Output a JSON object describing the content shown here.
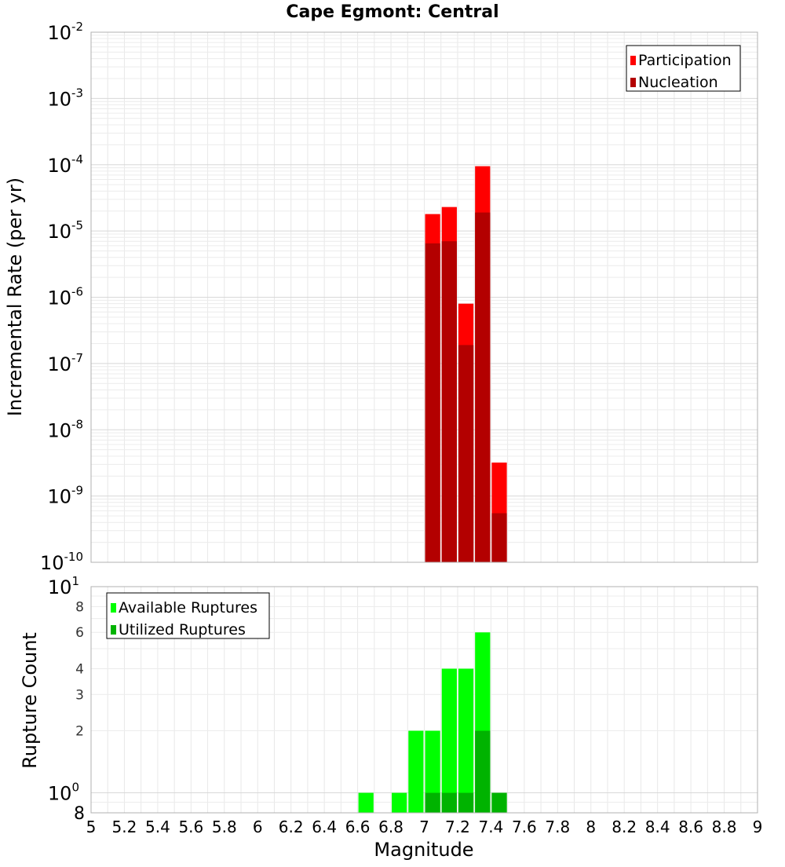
{
  "chart_data": [
    {
      "id": "top",
      "type": "bar",
      "title": "Cape Egmont: Central",
      "ylabel": "Incremental Rate (per yr)",
      "xlabel": "",
      "xlim": [
        5,
        9
      ],
      "yscale": "log",
      "ylim": [
        1e-10,
        0.01
      ],
      "y_ticks": [
        {
          "base": "10",
          "exp": "-2"
        },
        {
          "base": "10",
          "exp": "-3"
        },
        {
          "base": "10",
          "exp": "-4"
        },
        {
          "base": "10",
          "exp": "-5"
        },
        {
          "base": "10",
          "exp": "-6"
        },
        {
          "base": "10",
          "exp": "-7"
        },
        {
          "base": "10",
          "exp": "-8"
        },
        {
          "base": "10",
          "exp": "-9"
        },
        {
          "base": "10",
          "exp": "-10"
        }
      ],
      "bar_width": 0.1,
      "grid": true,
      "legend": {
        "position": "top-right"
      },
      "series": [
        {
          "name": "Participation",
          "color": "#ff0000",
          "points": [
            {
              "x": 7.05,
              "y": 1.8e-05
            },
            {
              "x": 7.15,
              "y": 2.3e-05
            },
            {
              "x": 7.25,
              "y": 8e-07
            },
            {
              "x": 7.35,
              "y": 9.5e-05
            },
            {
              "x": 7.45,
              "y": 3.2e-09
            }
          ]
        },
        {
          "name": "Nucleation",
          "color": "#b30000",
          "points": [
            {
              "x": 7.05,
              "y": 6.5e-06
            },
            {
              "x": 7.15,
              "y": 7e-06
            },
            {
              "x": 7.25,
              "y": 1.9e-07
            },
            {
              "x": 7.35,
              "y": 1.9e-05
            },
            {
              "x": 7.45,
              "y": 5.5e-10
            }
          ]
        }
      ]
    },
    {
      "id": "bottom",
      "type": "bar",
      "title": "",
      "ylabel": "Rupture Count",
      "xlabel": "Magnitude",
      "xlim": [
        5,
        9
      ],
      "x_ticks": [
        "5",
        "5.2",
        "5.4",
        "5.6",
        "5.8",
        "6",
        "6.2",
        "6.4",
        "6.6",
        "6.8",
        "7",
        "7.2",
        "7.4",
        "7.6",
        "7.8",
        "8",
        "8.2",
        "8.4",
        "8.6",
        "8.8",
        "9"
      ],
      "yscale": "log",
      "ylim": [
        0.8,
        10
      ],
      "y_ticks": [
        {
          "value": 10,
          "base": "10",
          "exp": "1",
          "major": true
        },
        {
          "value": 8,
          "label": "8"
        },
        {
          "value": 6,
          "label": "6"
        },
        {
          "value": 4,
          "label": "4"
        },
        {
          "value": 3,
          "label": "3"
        },
        {
          "value": 2,
          "label": "2"
        },
        {
          "value": 1,
          "base": "10",
          "exp": "0",
          "major": true
        },
        {
          "value": 0.8,
          "label": "8",
          "major": true
        }
      ],
      "bar_width": 0.1,
      "grid": true,
      "legend": {
        "position": "top-left"
      },
      "series": [
        {
          "name": "Available Ruptures",
          "color": "#00ff00",
          "points": [
            {
              "x": 6.65,
              "y": 1
            },
            {
              "x": 6.85,
              "y": 1
            },
            {
              "x": 6.95,
              "y": 2
            },
            {
              "x": 7.05,
              "y": 2
            },
            {
              "x": 7.15,
              "y": 4
            },
            {
              "x": 7.25,
              "y": 4
            },
            {
              "x": 7.35,
              "y": 6
            },
            {
              "x": 7.45,
              "y": 1
            }
          ]
        },
        {
          "name": "Utilized Ruptures",
          "color": "#00b300",
          "points": [
            {
              "x": 7.05,
              "y": 1
            },
            {
              "x": 7.15,
              "y": 1
            },
            {
              "x": 7.25,
              "y": 1
            },
            {
              "x": 7.35,
              "y": 2
            },
            {
              "x": 7.45,
              "y": 1
            }
          ]
        }
      ]
    }
  ]
}
